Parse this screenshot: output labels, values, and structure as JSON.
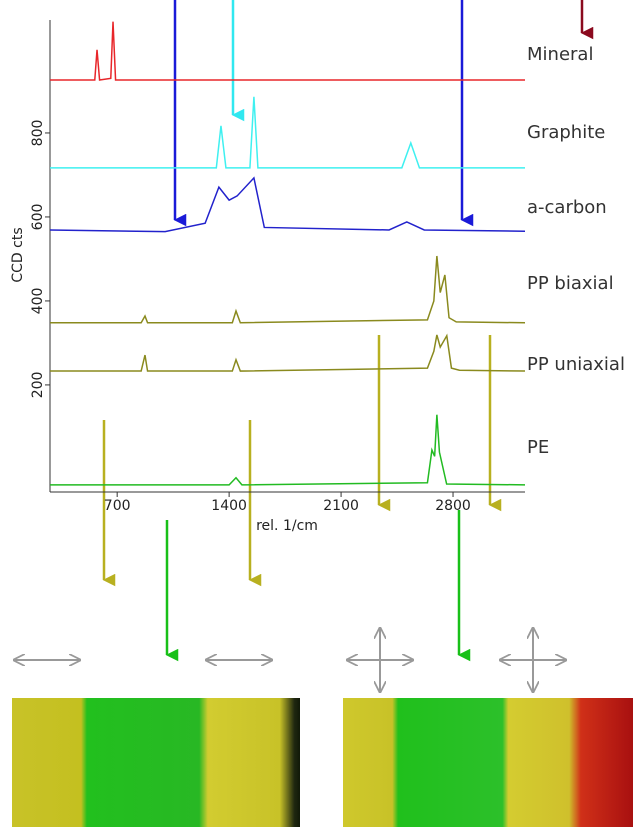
{
  "chart_data": {
    "type": "line",
    "x_label": "rel. 1/cm",
    "y_label": "CCD cts",
    "xlim": [
      280,
      3250
    ],
    "ylim": [
      -55,
      1069
    ],
    "xticks": [
      700,
      1400,
      2100,
      2800
    ],
    "yticks": [
      200,
      400,
      600,
      800
    ],
    "series": [
      {
        "name": "Mineral",
        "color": "#e8262a",
        "x": [
          280,
          560,
          574,
          590,
          660,
          674,
          690,
          3250
        ],
        "values": [
          926,
          926,
          998,
          926,
          930,
          1065,
          926,
          926
        ]
      },
      {
        "name": "Graphite",
        "color": "#3ff0f0",
        "x": [
          280,
          1320,
          1349,
          1380,
          1530,
          1555,
          1580,
          2480,
          2536,
          2590,
          3250
        ],
        "values": [
          717,
          717,
          817,
          717,
          717,
          886,
          717,
          717,
          776,
          717,
          717
        ]
      },
      {
        "name": "a-carbon",
        "color": "#2222cc",
        "x": [
          280,
          1000,
          1250,
          1336,
          1400,
          1450,
          1555,
          1620,
          2400,
          2511,
          2620,
          3250
        ],
        "values": [
          569,
          565,
          585,
          671,
          640,
          650,
          693,
          575,
          569,
          588,
          569,
          566
        ]
      },
      {
        "name": "PP biaxial",
        "color": "#8a8a1e",
        "x": [
          280,
          850,
          874,
          890,
          1420,
          1443,
          1470,
          2640,
          2680,
          2699,
          2720,
          2749,
          2775,
          2820,
          3250
        ],
        "values": [
          348,
          348,
          364,
          348,
          348,
          376,
          348,
          355,
          400,
          507,
          420,
          462,
          360,
          350,
          348
        ]
      },
      {
        "name": "PP uniaxial",
        "color": "#8a8a1e",
        "x": [
          280,
          850,
          874,
          890,
          1420,
          1443,
          1470,
          2640,
          2680,
          2699,
          2720,
          2761,
          2790,
          2840,
          3250
        ],
        "values": [
          233,
          233,
          271,
          233,
          233,
          260,
          233,
          240,
          280,
          319,
          290,
          317,
          240,
          235,
          233
        ]
      },
      {
        "name": "PE",
        "color": "#22bb22",
        "x": [
          280,
          1400,
          1443,
          1480,
          2640,
          2668,
          2685,
          2699,
          2715,
          2760,
          3250
        ],
        "values": [
          -38,
          -38,
          -21,
          -38,
          -33,
          45,
          30,
          129,
          40,
          -36,
          -38
        ]
      }
    ]
  }
}
